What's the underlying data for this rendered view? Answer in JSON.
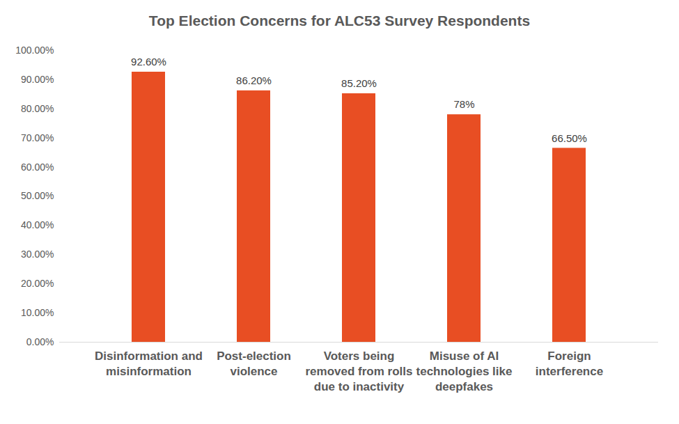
{
  "chart_data": {
    "type": "bar",
    "title": "Top Election Concerns for ALC53 Survey Respondents",
    "categories": [
      "Disinformation and misinformation",
      "Post-election violence",
      "Voters being removed from rolls due to inactivity",
      "Misuse of AI technologies like deepfakes",
      "Foreign interference"
    ],
    "values": [
      92.6,
      86.2,
      85.2,
      78,
      66.5
    ],
    "value_labels": [
      "92.60%",
      "86.20%",
      "85.20%",
      "78%",
      "66.50%"
    ],
    "data_labels": true,
    "color": "#e84e23",
    "ylim": [
      0,
      100
    ],
    "yticks": [
      {
        "value": 0,
        "label": "0.00%"
      },
      {
        "value": 10,
        "label": "10.00%"
      },
      {
        "value": 20,
        "label": "20.00%"
      },
      {
        "value": 30,
        "label": "30.00%"
      },
      {
        "value": 40,
        "label": "40.00%"
      },
      {
        "value": 50,
        "label": "50.00%"
      },
      {
        "value": 60,
        "label": "60.00%"
      },
      {
        "value": 70,
        "label": "70.00%"
      },
      {
        "value": 80,
        "label": "80.00%"
      },
      {
        "value": 90,
        "label": "90.00%"
      },
      {
        "value": 100,
        "label": "100.00%"
      }
    ],
    "grid": false
  }
}
